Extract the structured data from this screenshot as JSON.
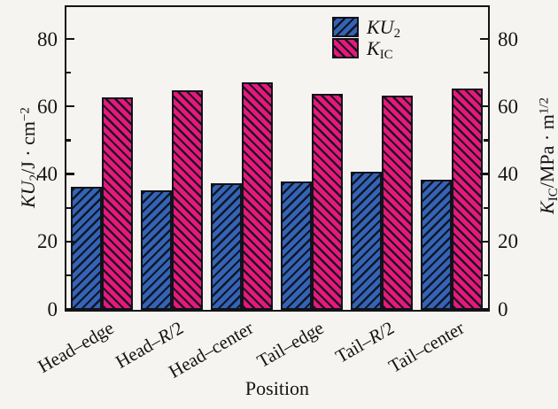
{
  "page": {
    "background": "#f6f4f0",
    "frame_color": "#141414"
  },
  "chart_data": {
    "type": "bar",
    "title": "",
    "categories": [
      "Head–edge",
      "Head–R/2",
      "Head–center",
      "Tail–edge",
      "Tail–R/2",
      "Tail–center"
    ],
    "series": [
      {
        "name": "KU2",
        "color": "#3563b5",
        "hatch": "/",
        "values": [
          36.5,
          35.5,
          37.5,
          38,
          41,
          38.5
        ]
      },
      {
        "name": "KIC",
        "color": "#e5197c",
        "hatch": "\\",
        "values": [
          63,
          65,
          67.5,
          64,
          63.5,
          65.5
        ]
      }
    ],
    "xlabel": "Position",
    "ylabel_left": "KU2/J·cm−2",
    "ylabel_right": "KIC/MPa·m1/2",
    "ylim": [
      0,
      89.5
    ],
    "yticks": [
      0,
      20,
      40,
      60,
      80
    ],
    "ytick_labels": [
      "0",
      "20",
      "40",
      "60",
      "80"
    ],
    "minor_step": 10,
    "grid": false,
    "legend_position": "upper-center-right"
  },
  "axes": {
    "left": {
      "label_main": "KU",
      "label_main_sub": "2",
      "label_rest": "/J · cm",
      "label_sup": "−2"
    },
    "right": {
      "label_main": "K",
      "label_main_sub": "IC",
      "label_rest": "/MPa · m",
      "label_sup": "1/2"
    },
    "x": {
      "label": "Position"
    }
  },
  "legend": {
    "items": [
      {
        "main": "KU",
        "sub": "2",
        "swatch_color": "#3563b5",
        "hatch": "/"
      },
      {
        "main": "K",
        "sub": "IC",
        "swatch_color": "#e5197c",
        "hatch": "\\"
      }
    ]
  }
}
